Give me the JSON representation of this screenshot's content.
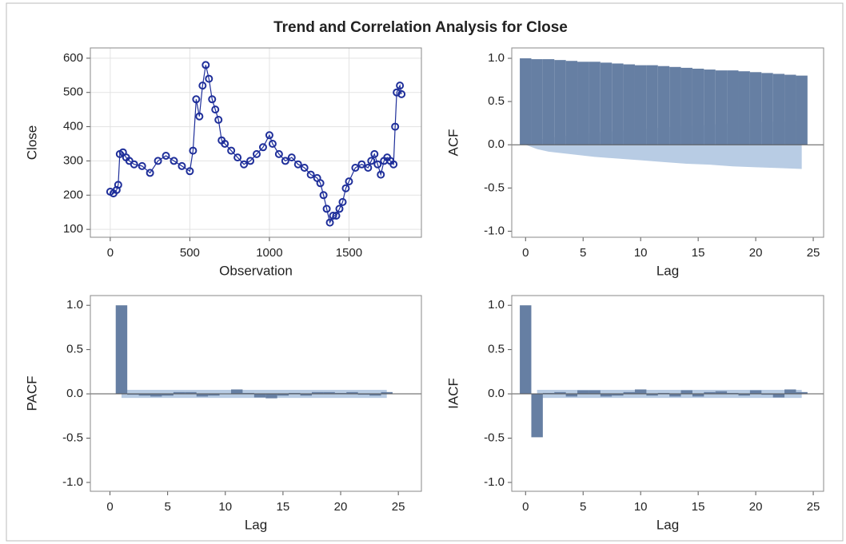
{
  "title": "Trend and Correlation Analysis for Close",
  "chart_data": [
    {
      "type": "line",
      "xlabel": "Observation",
      "ylabel": "Close",
      "color": "#1f2f9a",
      "grid": true,
      "x": [
        0,
        20,
        40,
        50,
        60,
        80,
        100,
        120,
        150,
        200,
        250,
        300,
        350,
        400,
        450,
        500,
        520,
        540,
        560,
        580,
        600,
        620,
        640,
        660,
        680,
        700,
        720,
        760,
        800,
        840,
        880,
        920,
        960,
        1000,
        1020,
        1060,
        1100,
        1140,
        1180,
        1220,
        1260,
        1300,
        1320,
        1340,
        1360,
        1380,
        1400,
        1420,
        1440,
        1460,
        1480,
        1500,
        1540,
        1580,
        1620,
        1640,
        1660,
        1680,
        1700,
        1720,
        1740,
        1760,
        1780,
        1790,
        1800,
        1820,
        1830
      ],
      "values": [
        210,
        205,
        215,
        230,
        320,
        325,
        310,
        300,
        290,
        285,
        265,
        300,
        315,
        300,
        285,
        270,
        330,
        480,
        430,
        520,
        580,
        540,
        480,
        450,
        420,
        360,
        350,
        330,
        310,
        290,
        300,
        320,
        340,
        375,
        350,
        320,
        300,
        310,
        290,
        280,
        260,
        250,
        235,
        200,
        160,
        120,
        140,
        140,
        160,
        180,
        220,
        240,
        280,
        290,
        280,
        300,
        320,
        290,
        260,
        300,
        310,
        300,
        290,
        400,
        500,
        520,
        495
      ],
      "xlim": [
        -125,
        1955
      ],
      "ylim": [
        77,
        630
      ],
      "xticks": [
        0,
        500,
        1000,
        1500
      ],
      "yticks": [
        100,
        200,
        300,
        400,
        500,
        600
      ]
    },
    {
      "type": "bar",
      "xlabel": "Lag",
      "ylabel": "ACF",
      "color": "#667fa3",
      "band_color": "#b8cce4",
      "grid": false,
      "x": [
        0,
        1,
        2,
        3,
        4,
        5,
        6,
        7,
        8,
        9,
        10,
        11,
        12,
        13,
        14,
        15,
        16,
        17,
        18,
        19,
        20,
        21,
        22,
        23,
        24
      ],
      "values": [
        1.0,
        0.99,
        0.99,
        0.98,
        0.97,
        0.96,
        0.96,
        0.95,
        0.94,
        0.93,
        0.92,
        0.92,
        0.91,
        0.9,
        0.89,
        0.88,
        0.87,
        0.86,
        0.86,
        0.85,
        0.84,
        0.83,
        0.82,
        0.81,
        0.8
      ],
      "band": {
        "lags": [
          0,
          1,
          2,
          4,
          6,
          8,
          10,
          12,
          14,
          16,
          18,
          20,
          22,
          24
        ],
        "lower": [
          0,
          -0.05,
          -0.08,
          -0.11,
          -0.14,
          -0.16,
          -0.18,
          -0.2,
          -0.22,
          -0.23,
          -0.25,
          -0.26,
          -0.27,
          -0.28
        ],
        "upper": [
          0,
          0.05,
          0.08,
          0.11,
          0.14,
          0.16,
          0.18,
          0.2,
          0.22,
          0.23,
          0.25,
          0.26,
          0.27,
          0.28
        ]
      },
      "xlim": [
        -1.2,
        25.9
      ],
      "ylim": [
        -1.07,
        1.12
      ],
      "xticks": [
        0,
        5,
        10,
        15,
        20,
        25
      ],
      "yticks": [
        {
          "value": -1,
          "label": "-1.0"
        },
        {
          "value": -0.5,
          "label": "-0.5"
        },
        {
          "value": 0,
          "label": "0.0"
        },
        {
          "value": 0.5,
          "label": "0.5"
        },
        {
          "value": 1,
          "label": "1.0"
        }
      ]
    },
    {
      "type": "bar",
      "xlabel": "Lag",
      "ylabel": "PACF",
      "color": "#667fa3",
      "band_color": "#b8cce4",
      "grid": false,
      "x": [
        1,
        2,
        3,
        4,
        5,
        6,
        7,
        8,
        9,
        10,
        11,
        12,
        13,
        14,
        15,
        16,
        17,
        18,
        19,
        20,
        21,
        22,
        23,
        24
      ],
      "values": [
        1.0,
        -0.01,
        -0.02,
        -0.03,
        -0.02,
        0.02,
        0.02,
        -0.03,
        -0.02,
        0.0,
        0.05,
        0.01,
        -0.04,
        -0.05,
        -0.02,
        0.01,
        -0.02,
        0.02,
        0.02,
        0.01,
        0.02,
        -0.01,
        -0.02,
        0.02
      ],
      "band": {
        "lags": [
          1,
          24
        ],
        "lower": [
          -0.046,
          -0.046
        ],
        "upper": [
          0.046,
          0.046
        ]
      },
      "xlim": [
        -1.7,
        27
      ],
      "ylim": [
        -1.1,
        1.11
      ],
      "xticks": [
        0,
        5,
        10,
        15,
        20,
        25
      ],
      "yticks": [
        {
          "value": -1,
          "label": "-1.0"
        },
        {
          "value": -0.5,
          "label": "-0.5"
        },
        {
          "value": 0,
          "label": "0.0"
        },
        {
          "value": 0.5,
          "label": "0.5"
        },
        {
          "value": 1,
          "label": "1.0"
        }
      ]
    },
    {
      "type": "bar",
      "xlabel": "Lag",
      "ylabel": "IACF",
      "color": "#667fa3",
      "band_color": "#b8cce4",
      "grid": false,
      "x": [
        0,
        1,
        2,
        3,
        4,
        5,
        6,
        7,
        8,
        9,
        10,
        11,
        12,
        13,
        14,
        15,
        16,
        17,
        18,
        19,
        20,
        21,
        22,
        23,
        24
      ],
      "values": [
        1.0,
        -0.49,
        0.01,
        0.02,
        -0.03,
        0.04,
        0.04,
        -0.03,
        -0.02,
        0.02,
        0.05,
        -0.02,
        0.01,
        -0.03,
        0.04,
        -0.03,
        0.02,
        0.03,
        0.01,
        -0.02,
        0.04,
        -0.01,
        -0.04,
        0.05,
        0.02
      ],
      "band": {
        "lags": [
          1,
          24
        ],
        "lower": [
          -0.046,
          -0.046
        ],
        "upper": [
          0.046,
          0.046
        ]
      },
      "xlim": [
        -1.2,
        25.9
      ],
      "ylim": [
        -1.1,
        1.11
      ],
      "xticks": [
        0,
        5,
        10,
        15,
        20,
        25
      ],
      "yticks": [
        {
          "value": -1,
          "label": "-1.0"
        },
        {
          "value": -0.5,
          "label": "-0.5"
        },
        {
          "value": 0,
          "label": "0.0"
        },
        {
          "value": 0.5,
          "label": "0.5"
        },
        {
          "value": 1,
          "label": "1.0"
        }
      ]
    }
  ]
}
